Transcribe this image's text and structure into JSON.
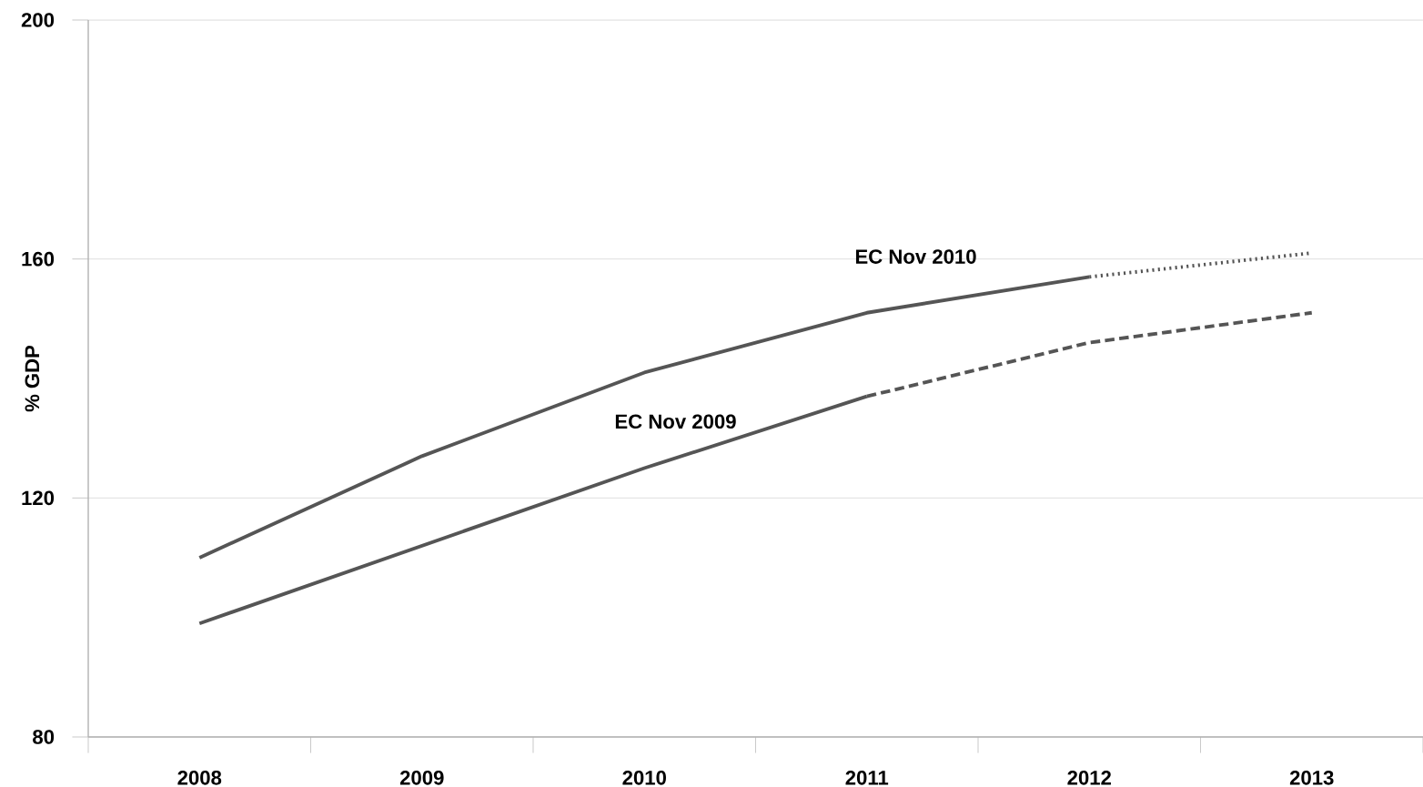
{
  "chart_data": {
    "type": "line",
    "ylabel": "% GDP",
    "categories": [
      "2008",
      "2009",
      "2010",
      "2011",
      "2012",
      "2013"
    ],
    "series": [
      {
        "color": "#555555",
        "line_style": "solid",
        "values": [
          110,
          127,
          141,
          151,
          157,
          null
        ]
      },
      {
        "color": "#555555",
        "line_style": "dotted",
        "values": [
          null,
          null,
          null,
          null,
          157,
          161
        ]
      },
      {
        "color": "#555555",
        "line_style": "solid",
        "values": [
          99,
          112,
          125,
          137,
          null,
          null
        ]
      },
      {
        "color": "#555555",
        "line_style": "dashed",
        "values": [
          null,
          null,
          null,
          137,
          146,
          151
        ]
      }
    ],
    "ylim": [
      80,
      200
    ],
    "yticks": [
      80,
      120,
      160,
      200
    ],
    "grid": "y",
    "marker": "none",
    "annotations": [
      "EC Nov 2010",
      "EC Nov 2009"
    ]
  }
}
